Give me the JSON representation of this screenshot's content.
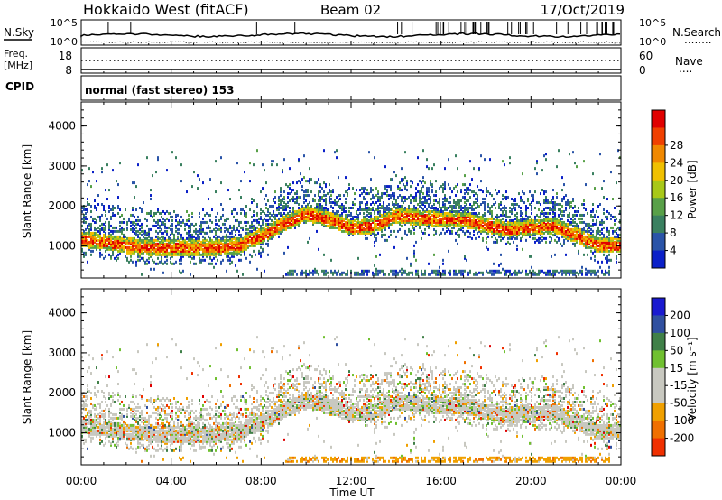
{
  "header": {
    "station": "Hokkaido West (fitACF)",
    "beam": "Beam 02",
    "date": "17/Oct/2019",
    "cpid_label": "CPID",
    "mode": "normal (fast stereo) 153"
  },
  "top_panels": {
    "nsky_label": "N.Sky",
    "nsearch_label": "N.Search",
    "nsearch_line": "........",
    "freq_label_line1": "Freq.",
    "freq_label_line2": "[MHz]",
    "nave_label": "Nave",
    "nave_line": "....",
    "noise_left_ticks": [
      "10^5",
      "10^0"
    ],
    "noise_right_ticks": [
      "10^5",
      "10^0"
    ],
    "freq_ticks": [
      "18",
      "8"
    ],
    "nave_ticks": [
      "60",
      "0"
    ]
  },
  "colors": {
    "power_scale": [
      "#0b20c8",
      "#2a54a8",
      "#3a8060",
      "#58a048",
      "#a8c818",
      "#f0c000",
      "#f08800",
      "#f04000",
      "#e00000"
    ],
    "velocity_scale": [
      "#1a1ad0",
      "#3050a0",
      "#408048",
      "#70c030",
      "#c8c8c0",
      "#c8c8c0",
      "#f0a000",
      "#f07000",
      "#f03000",
      "#e00000"
    ]
  },
  "chart_data": [
    {
      "type": "heatmap",
      "title": "Power",
      "xlabel": "",
      "ylabel": "Slant Range [km]",
      "yticks": [
        "1000",
        "2000",
        "3000",
        "4000"
      ],
      "ylim": [
        200,
        4600
      ],
      "xlim_hours": [
        0,
        24
      ],
      "colorbar_label": "Power [dB]",
      "colorbar_ticks": [
        "4",
        "8",
        "12",
        "16",
        "20",
        "24",
        "28"
      ],
      "colorbar_range": [
        0,
        30
      ],
      "main_echo_band_km": [
        {
          "hour": 0,
          "range": 1200
        },
        {
          "hour": 1,
          "range": 1150
        },
        {
          "hour": 2,
          "range": 1050
        },
        {
          "hour": 3,
          "range": 1000
        },
        {
          "hour": 4,
          "range": 1000
        },
        {
          "hour": 5,
          "range": 1000
        },
        {
          "hour": 6,
          "range": 1000
        },
        {
          "hour": 7,
          "range": 1050
        },
        {
          "hour": 8,
          "range": 1300
        },
        {
          "hour": 9,
          "range": 1600
        },
        {
          "hour": 10,
          "range": 1850
        },
        {
          "hour": 11,
          "range": 1700
        },
        {
          "hour": 12,
          "range": 1500
        },
        {
          "hour": 13,
          "range": 1550
        },
        {
          "hour": 14,
          "range": 1800
        },
        {
          "hour": 15,
          "range": 1750
        },
        {
          "hour": 16,
          "range": 1700
        },
        {
          "hour": 17,
          "range": 1700
        },
        {
          "hour": 18,
          "range": 1550
        },
        {
          "hour": 19,
          "range": 1450
        },
        {
          "hour": 20,
          "range": 1500
        },
        {
          "hour": 21,
          "range": 1550
        },
        {
          "hour": 22,
          "range": 1300
        },
        {
          "hour": 23,
          "range": 1050
        },
        {
          "hour": 24,
          "range": 1050
        }
      ]
    },
    {
      "type": "heatmap",
      "title": "Velocity",
      "xlabel": "Time UT",
      "ylabel": "Slant Range [km]",
      "yticks": [
        "1000",
        "2000",
        "3000",
        "4000"
      ],
      "ylim": [
        200,
        4600
      ],
      "xlim_hours": [
        0,
        24
      ],
      "xticks": [
        "00:00",
        "04:00",
        "08:00",
        "12:00",
        "16:00",
        "20:00",
        "00:00"
      ],
      "colorbar_label": "Velocity [m s⁻¹]",
      "colorbar_ticks": [
        "200",
        "100",
        "50",
        "15",
        "-15",
        "-50",
        "-100",
        "-200"
      ],
      "colorbar_range": [
        -250,
        250
      ]
    }
  ]
}
